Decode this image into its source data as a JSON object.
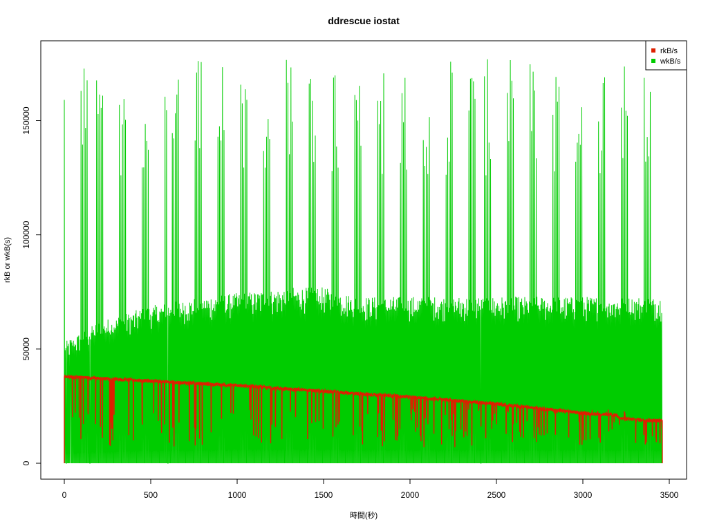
{
  "chart_data": {
    "type": "line",
    "title": "ddrescue iostat",
    "xlabel": "時間(秒)",
    "ylabel": "rkB or wkB(s)",
    "xlim": [
      0,
      3500
    ],
    "ylim": [
      0,
      178000
    ],
    "x_ticks": [
      0,
      500,
      1000,
      1500,
      2000,
      2500,
      3000,
      3500
    ],
    "y_ticks": [
      0,
      50000,
      100000,
      150000
    ],
    "grid": false,
    "legend_position": "top-right",
    "x_end": 3460,
    "series": [
      {
        "name": "rkB/s",
        "color": "#dd2000",
        "trend_points": [
          [
            0,
            38000
          ],
          [
            500,
            36000
          ],
          [
            1000,
            34000
          ],
          [
            1500,
            31500
          ],
          [
            2000,
            29000
          ],
          [
            2500,
            26000
          ],
          [
            3000,
            22000
          ],
          [
            3200,
            21000
          ],
          [
            3220,
            19500
          ],
          [
            3460,
            18500
          ]
        ],
        "dip_low_range": [
          7000,
          24000
        ]
      },
      {
        "name": "wkB/s",
        "color": "#00cc00",
        "peak_range": [
          125000,
          177000
        ],
        "mid_band_points": [
          [
            0,
            53000
          ],
          [
            200,
            62000
          ],
          [
            500,
            69000
          ],
          [
            800,
            73000
          ],
          [
            1300,
            77000
          ],
          [
            1500,
            77000
          ],
          [
            1700,
            73000
          ],
          [
            2500,
            73000
          ],
          [
            3000,
            73000
          ],
          [
            3460,
            73000
          ]
        ],
        "floor": 0
      }
    ]
  }
}
